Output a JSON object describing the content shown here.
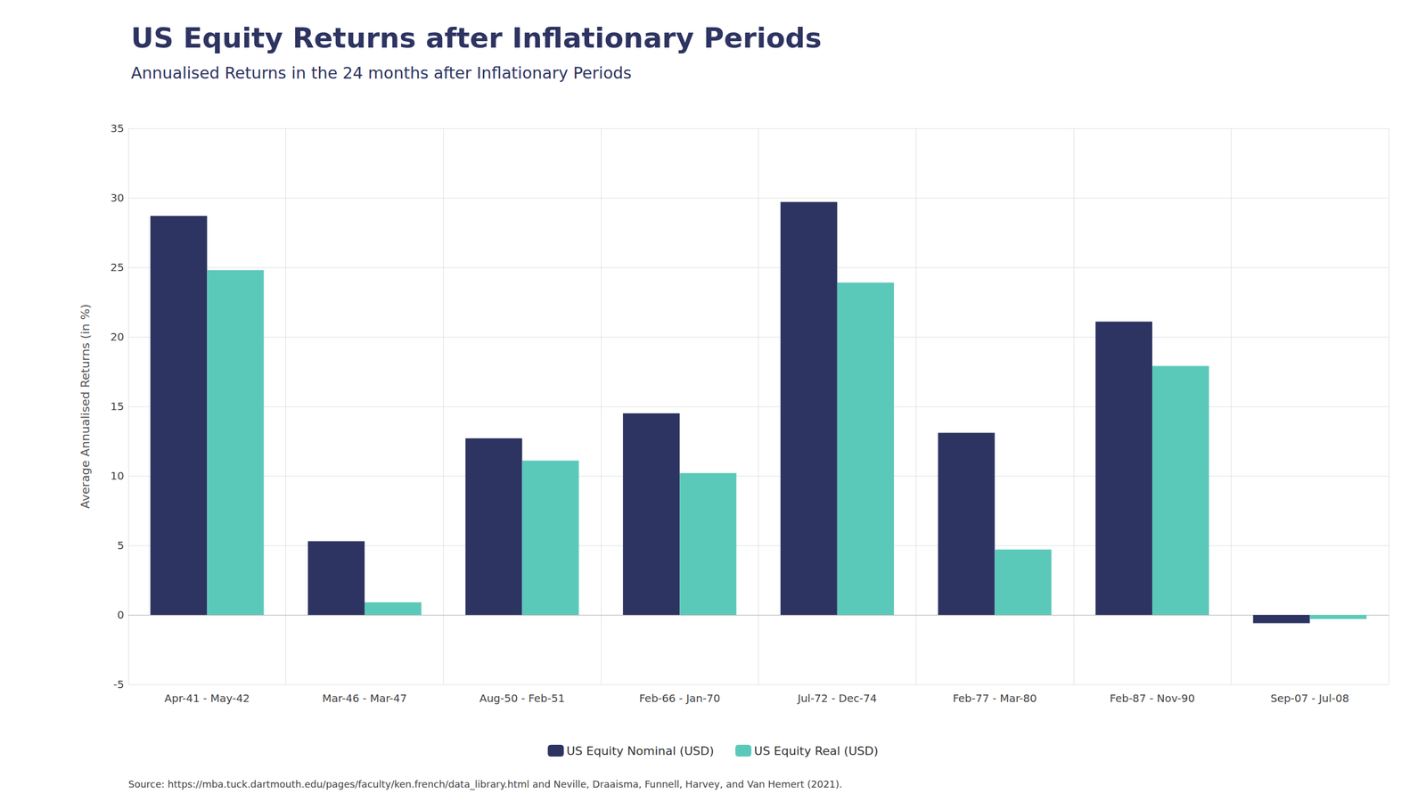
{
  "chart_data": {
    "type": "bar",
    "title": "US Equity Returns after Inflationary Periods",
    "subtitle": "Annualised Returns in the 24 months after Inflationary Periods",
    "y_label": "Average Annualised Returns (in %)",
    "categories": [
      "Apr-41 - May-42",
      "Mar-46 - Mar-47",
      "Aug-50 - Feb-51",
      "Feb-66 - Jan-70",
      "Jul-72 - Dec-74",
      "Feb-77 - Mar-80",
      "Feb-87 - Nov-90",
      "Sep-07 - Jul-08"
    ],
    "series": [
      {
        "name": "US Equity Nominal (USD)",
        "color": "#2e3461",
        "values": [
          28.7,
          5.3,
          12.7,
          14.5,
          29.7,
          13.1,
          21.1,
          -0.6
        ]
      },
      {
        "name": "US Equity Real (USD)",
        "color": "#5bc9b9",
        "values": [
          24.8,
          0.9,
          11.1,
          10.2,
          23.9,
          4.7,
          17.9,
          -0.3
        ]
      }
    ],
    "ylim": [
      -5,
      35
    ],
    "yticks": [
      -5,
      0,
      5,
      10,
      15,
      20,
      25,
      30,
      35
    ],
    "grid": true,
    "legend": "bottom",
    "annotations": [
      "Source: https://mba.tuck.dartmouth.edu/pages/faculty/ken.french/data_library.html and Neville, Draaisma, Funnell, Harvey, and Van Hemert (2021)."
    ]
  }
}
